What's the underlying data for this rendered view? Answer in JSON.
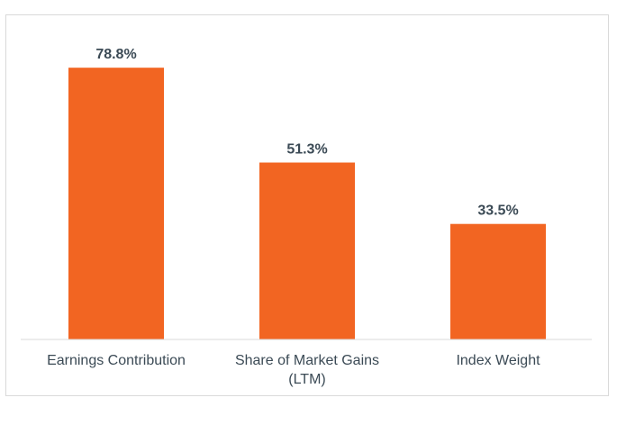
{
  "chart_data": {
    "type": "bar",
    "categories": [
      [
        "Earnings Contribution"
      ],
      [
        "Share of Market Gains",
        "(LTM)"
      ],
      [
        "Index Weight"
      ]
    ],
    "values": [
      78.8,
      51.3,
      33.5
    ],
    "value_labels": [
      "78.8%",
      "51.3%",
      "33.5%"
    ],
    "bar_color": "#f26522",
    "ylim": [
      0,
      100
    ],
    "grid": false,
    "legend": "none"
  }
}
